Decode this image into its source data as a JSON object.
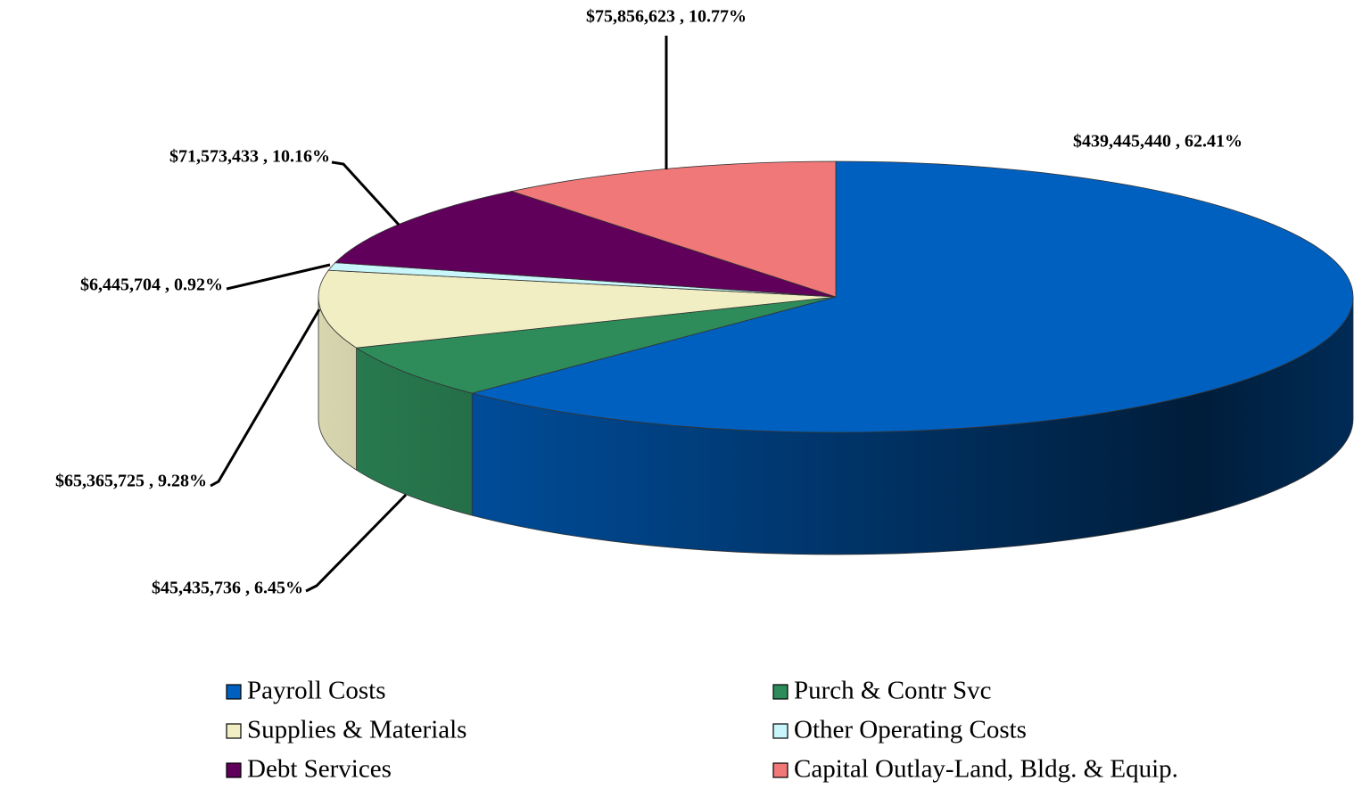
{
  "chart_data": {
    "type": "pie",
    "categories": [
      "Payroll Costs",
      "Purch & Contr Svc",
      "Supplies & Materials",
      "Other Operating Costs",
      "Debt Services",
      "Capital Outlay-Land, Bldg. & Equip."
    ],
    "values": [
      439445440,
      45435736,
      65365725,
      6445704,
      71573433,
      75856623
    ],
    "value_labels": [
      "$439,445,440 , 62.41%",
      "$45,435,736 , 6.45%",
      "$65,365,725 , 9.28%",
      "$6,445,704 , 0.92%",
      "$71,573,433 , 10.16%",
      "$75,856,623 , 10.77%"
    ],
    "colors": [
      "#0060c0",
      "#2e8b5a",
      "#f0eec2",
      "#c8f6fa",
      "#60005a",
      "#f07878"
    ],
    "legend": "bottom"
  }
}
